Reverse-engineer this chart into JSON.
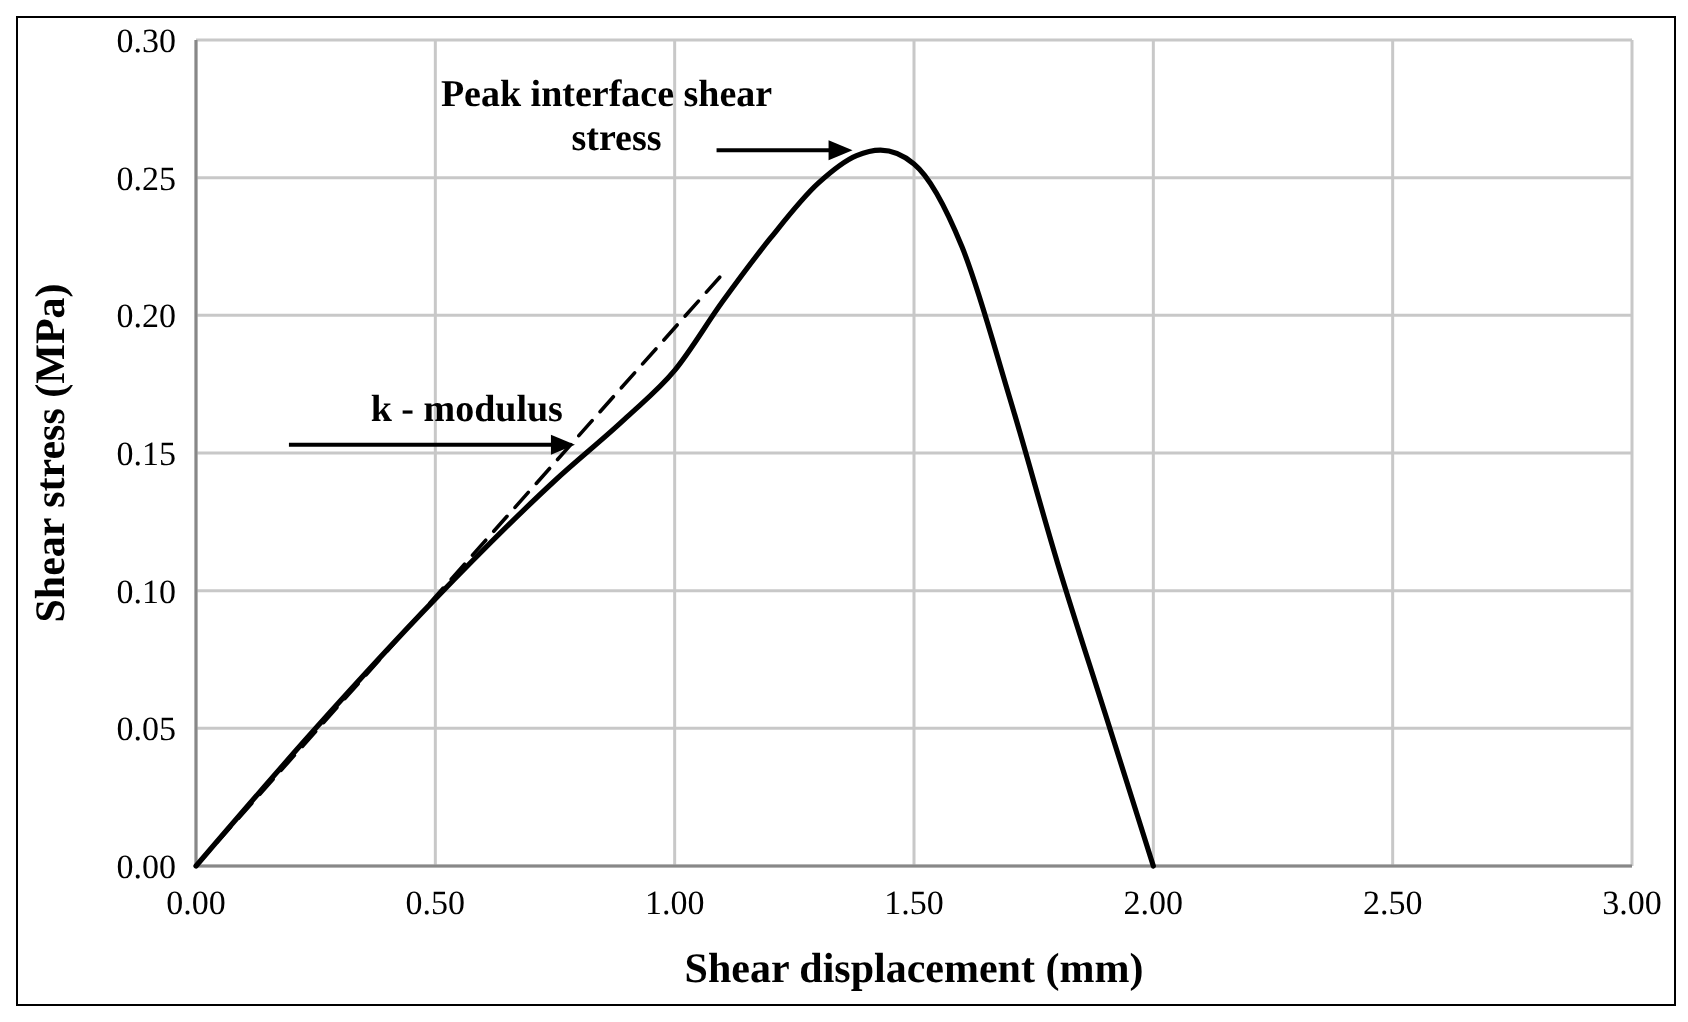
{
  "chart_data": {
    "type": "line",
    "xlabel": "Shear displacement (mm)",
    "ylabel": "Shear stress (MPa)",
    "xlim": [
      0,
      3
    ],
    "ylim": [
      0,
      0.3
    ],
    "xticks": [
      {
        "value": 0,
        "label": "0.00"
      },
      {
        "value": 0.5,
        "label": "0.50"
      },
      {
        "value": 1,
        "label": "1.00"
      },
      {
        "value": 1.5,
        "label": "1.50"
      },
      {
        "value": 2,
        "label": "2.00"
      },
      {
        "value": 2.5,
        "label": "2.50"
      },
      {
        "value": 3,
        "label": "3.00"
      }
    ],
    "yticks": [
      {
        "value": 0,
        "label": "0.00"
      },
      {
        "value": 0.05,
        "label": "0.05"
      },
      {
        "value": 0.1,
        "label": "0.10"
      },
      {
        "value": 0.15,
        "label": "0.15"
      },
      {
        "value": 0.2,
        "label": "0.20"
      },
      {
        "value": 0.25,
        "label": "0.25"
      },
      {
        "value": 0.3,
        "label": "0.30"
      }
    ],
    "grid": true,
    "marker": "none",
    "series": [
      {
        "color": "#000000",
        "line_style": "solid",
        "x": [
          0,
          0.25,
          0.5,
          0.75,
          0.9,
          1.0,
          1.1,
          1.2,
          1.3,
          1.38,
          1.43,
          1.5,
          1.6,
          1.7,
          1.8,
          1.9,
          2.0
        ],
        "values": [
          0,
          0.05,
          0.097,
          0.14,
          0.163,
          0.18,
          0.205,
          0.228,
          0.248,
          0.258,
          0.26,
          0.255,
          0.225,
          0.17,
          0.11,
          0.055,
          0
        ]
      },
      {
        "color": "#000000",
        "line_style": "dashed",
        "x": [
          0,
          1.1
        ],
        "values": [
          0,
          0.215
        ]
      }
    ],
    "annotations": [
      {
        "text": "Peak interface shear stress",
        "x": 1.38,
        "y": 0.26
      },
      {
        "text": "k - modulus",
        "x": 0.8,
        "y": 0.153
      }
    ]
  }
}
